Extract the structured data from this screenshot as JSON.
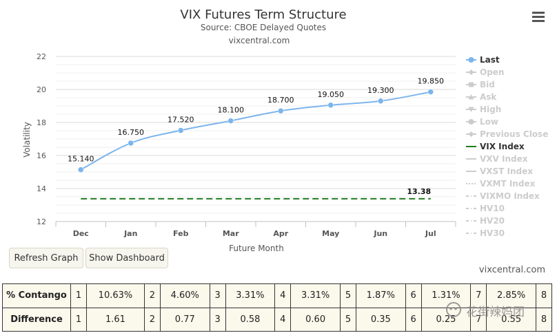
{
  "chart_data": {
    "type": "line",
    "title": "VIX Futures Term Structure",
    "subtitle": "Source: CBOE Delayed Quotes",
    "credit": "vixcentral.com",
    "xlabel": "Future Month",
    "ylabel": "Volatility",
    "categories": [
      "Dec",
      "Jan",
      "Feb",
      "Mar",
      "Apr",
      "May",
      "Jun",
      "Jul"
    ],
    "ylim": [
      12,
      22
    ],
    "yticks": [
      12,
      14,
      16,
      18,
      20,
      22
    ],
    "grid": true,
    "legend_position": "right",
    "series": [
      {
        "name": "Last",
        "values": [
          15.14,
          16.75,
          17.52,
          18.1,
          18.7,
          19.05,
          19.3,
          19.85
        ],
        "labels": [
          "15.140",
          "16.750",
          "17.520",
          "18.100",
          "18.700",
          "19.050",
          "19.300",
          "19.850"
        ],
        "color": "#7cb5ec",
        "marker": "circle"
      },
      {
        "name": "VIX Index",
        "values": [
          13.38,
          13.38,
          13.38,
          13.38,
          13.38,
          13.38,
          13.38,
          13.38
        ],
        "end_label": "13.38",
        "color": "#1e7b1e",
        "dash": "dashed"
      }
    ],
    "legend": [
      {
        "name": "Last",
        "active": true,
        "symbol": "circle"
      },
      {
        "name": "Open",
        "active": false,
        "symbol": "diamond"
      },
      {
        "name": "Bid",
        "active": false,
        "symbol": "square"
      },
      {
        "name": "Ask",
        "active": false,
        "symbol": "triangle"
      },
      {
        "name": "High",
        "active": false,
        "symbol": "triangle-down"
      },
      {
        "name": "Low",
        "active": false,
        "symbol": "circle"
      },
      {
        "name": "Previous Close",
        "active": false,
        "symbol": "diamond"
      },
      {
        "name": "VIX Index",
        "active": true,
        "symbol": "line-solid"
      },
      {
        "name": "VXV Index",
        "active": false,
        "symbol": "line-solid"
      },
      {
        "name": "VXST Index",
        "active": false,
        "symbol": "line-solid"
      },
      {
        "name": "VXMT Index",
        "active": false,
        "symbol": "line-dotted"
      },
      {
        "name": "VIXMO Index",
        "active": false,
        "symbol": "line-dashdot"
      },
      {
        "name": "HV10",
        "active": false,
        "symbol": "line-dashdot"
      },
      {
        "name": "HV20",
        "active": false,
        "symbol": "line-dashdot"
      },
      {
        "name": "HV30",
        "active": false,
        "symbol": "line-dashdot"
      }
    ]
  },
  "menu_icon": "hamburger-icon",
  "buttons": {
    "refresh": "Refresh Graph",
    "dashboard": "Show Dashboard"
  },
  "credit_bottom": "vixcentral.com",
  "table": {
    "contango": {
      "label": "% Contango",
      "cells": [
        {
          "n": "1",
          "v": "10.63%"
        },
        {
          "n": "2",
          "v": "4.60%"
        },
        {
          "n": "3",
          "v": "3.31%"
        },
        {
          "n": "4",
          "v": "3.31%"
        },
        {
          "n": "5",
          "v": "1.87%"
        },
        {
          "n": "6",
          "v": "1.31%"
        },
        {
          "n": "7",
          "v": "2.85%"
        },
        {
          "n": "8",
          "v": ""
        }
      ]
    },
    "difference": {
      "label": "Difference",
      "cells": [
        {
          "n": "1",
          "v": "1.61"
        },
        {
          "n": "2",
          "v": "0.77"
        },
        {
          "n": "3",
          "v": "0.58"
        },
        {
          "n": "4",
          "v": "0.60"
        },
        {
          "n": "5",
          "v": "0.35"
        },
        {
          "n": "6",
          "v": "0.25"
        },
        {
          "n": "7",
          "v": "0.55"
        },
        {
          "n": "8",
          "v": ""
        }
      ]
    }
  },
  "watermark": "花街辣妈团"
}
